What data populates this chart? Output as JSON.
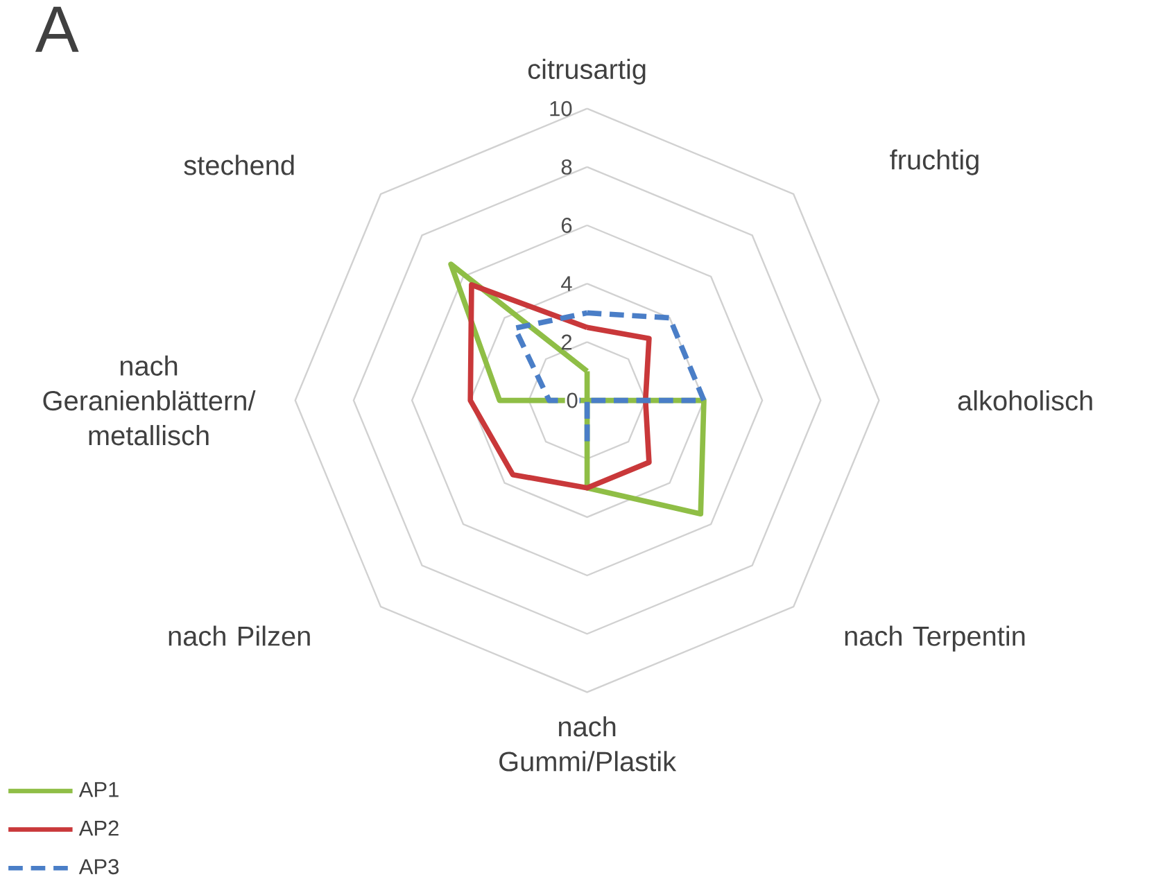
{
  "chart_data": {
    "type": "radar",
    "title": "A",
    "categories": [
      "citrusartig",
      "fruchtig",
      "alkoholisch",
      "nach Terpentin",
      "nach Gummi/Plastik",
      "nach Pilzen",
      "nach Geranienblättern/ metallisch",
      "stechend"
    ],
    "series": [
      {
        "name": "AP1",
        "color": "#8fbe46",
        "line_style": "solid",
        "values": [
          1,
          0,
          4,
          5.5,
          3,
          0,
          3,
          6.6
        ]
      },
      {
        "name": "AP2",
        "color": "#c9383a",
        "line_style": "solid",
        "values": [
          2.5,
          3,
          2,
          3,
          3,
          3.6,
          4,
          5.6
        ]
      },
      {
        "name": "AP3",
        "color": "#4a7ec7",
        "line_style": "dashed",
        "values": [
          3,
          4,
          4,
          0,
          1.5,
          0,
          1.3,
          3.5
        ]
      }
    ],
    "ylim": [
      0,
      10
    ],
    "yticks": [
      0,
      2,
      4,
      6,
      8,
      10
    ],
    "grid": true,
    "legend": "bottom left"
  }
}
